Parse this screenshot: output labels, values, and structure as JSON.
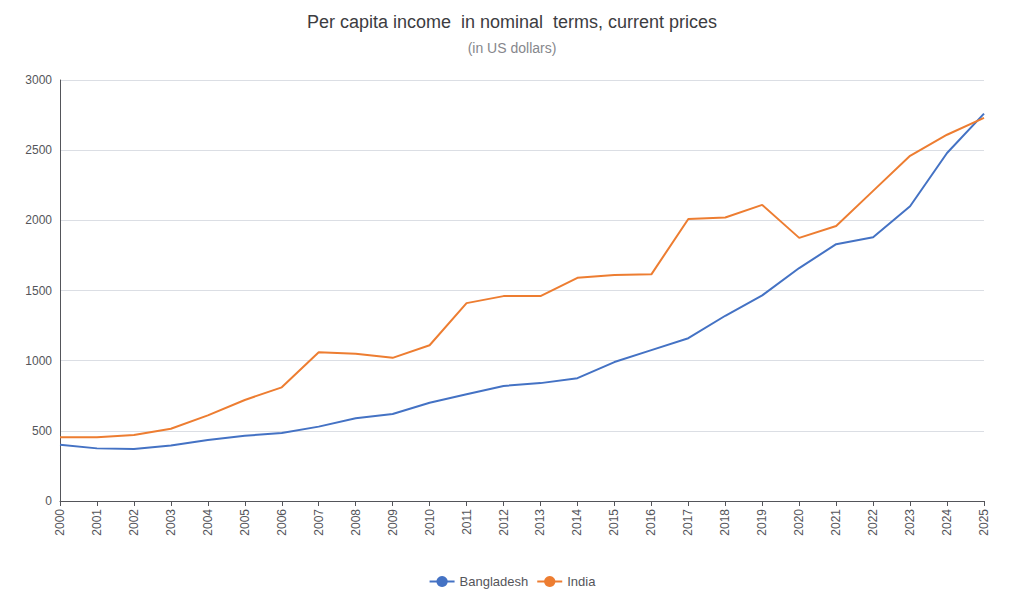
{
  "chart_data": {
    "type": "line",
    "title": "Per capita income  in nominal  terms, current prices",
    "subtitle": "(in US dollars)",
    "x": [
      2000,
      2001,
      2002,
      2003,
      2004,
      2005,
      2006,
      2007,
      2008,
      2009,
      2010,
      2011,
      2012,
      2013,
      2014,
      2015,
      2016,
      2017,
      2018,
      2019,
      2020,
      2021,
      2022,
      2023,
      2024,
      2025
    ],
    "series": [
      {
        "name": "Bangladesh",
        "color": "#4472C4",
        "values": [
          400,
          375,
          370,
          395,
          435,
          465,
          485,
          530,
          590,
          620,
          700,
          760,
          820,
          840,
          875,
          990,
          1075,
          1160,
          1320,
          1465,
          1660,
          1830,
          1880,
          2100,
          2480,
          2760
        ]
      },
      {
        "name": "India",
        "color": "#ED7D31",
        "values": [
          455,
          455,
          470,
          515,
          610,
          720,
          810,
          1060,
          1050,
          1020,
          1110,
          1410,
          1460,
          1460,
          1590,
          1610,
          1615,
          2010,
          2020,
          2110,
          1875,
          1960,
          2210,
          2460,
          2610,
          2730
        ]
      }
    ],
    "xlim": [
      2000,
      2025
    ],
    "xticks": [
      2000,
      2001,
      2002,
      2003,
      2004,
      2005,
      2006,
      2007,
      2008,
      2009,
      2010,
      2011,
      2012,
      2013,
      2014,
      2015,
      2016,
      2017,
      2018,
      2019,
      2020,
      2021,
      2022,
      2023,
      2024,
      2025
    ],
    "ylim": [
      0,
      3000
    ],
    "yticks": [
      0,
      500,
      1000,
      1500,
      2000,
      2500,
      3000
    ],
    "grid": true,
    "legend": "bottom"
  }
}
